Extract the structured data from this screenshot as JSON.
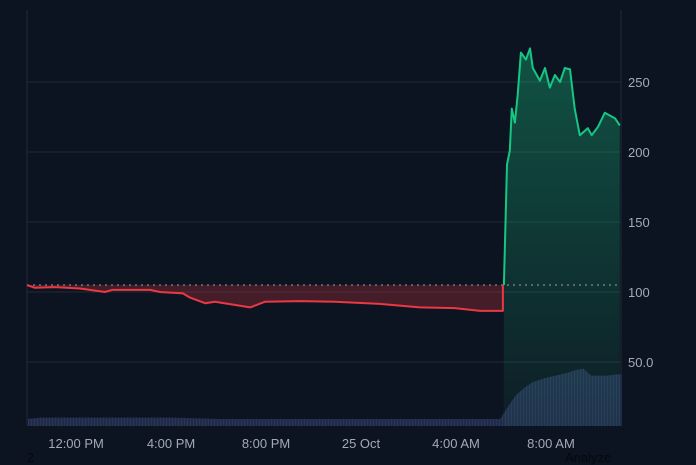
{
  "chart_data": {
    "type": "area",
    "baseline": 105,
    "ylim": [
      0,
      290
    ],
    "y_ticks": [
      "50.0",
      "100",
      "150",
      "200",
      "250"
    ],
    "y_tick_values": [
      50,
      100,
      150,
      200,
      250
    ],
    "x_ticks": [
      "12:00 PM",
      "4:00 PM",
      "8:00 PM",
      "25 Oct",
      "4:00 AM",
      "8:00 AM"
    ],
    "x_tick_times": [
      "24 12:00",
      "24 16:00",
      "24 20:00",
      "25 00:00",
      "25 04:00",
      "25 08:00"
    ],
    "xlim": [
      "24 09:56",
      "25 10:57"
    ],
    "grid": true,
    "colors": {
      "up": "#16c784",
      "down": "#ea3943",
      "volume": "#2a3558",
      "background": "#0d1421",
      "grid": "#222a38"
    },
    "series": [
      {
        "points": [
          [
            "24 09:56",
            105
          ],
          [
            "24 10:16",
            103
          ],
          [
            "24 11:07",
            103.5
          ],
          [
            "24 12:10",
            102.5
          ],
          [
            "24 13:13",
            100
          ],
          [
            "24 13:31",
            101.5
          ],
          [
            "24 15:07",
            101.5
          ],
          [
            "24 15:32",
            100
          ],
          [
            "24 16:30",
            99
          ],
          [
            "24 16:48",
            96
          ],
          [
            "24 17:26",
            92
          ],
          [
            "24 17:51",
            93
          ],
          [
            "24 19:20",
            89
          ],
          [
            "24 19:57",
            93
          ],
          [
            "24 21:26",
            93.5
          ],
          [
            "24 22:54",
            93
          ],
          [
            "25 00:48",
            91.5
          ],
          [
            "25 02:29",
            89
          ],
          [
            "25 03:57",
            88.5
          ],
          [
            "25 05:01",
            86.5
          ],
          [
            "25 05:56",
            86.5
          ],
          [
            "25 06:01",
            105
          ],
          [
            "25 06:09",
            191
          ],
          [
            "25 06:16",
            201
          ],
          [
            "25 06:21",
            231
          ],
          [
            "25 06:29",
            221
          ],
          [
            "25 06:36",
            241
          ],
          [
            "25 06:44",
            271
          ],
          [
            "25 06:57",
            266
          ],
          [
            "25 07:07",
            274
          ],
          [
            "25 07:14",
            260
          ],
          [
            "25 07:32",
            251
          ],
          [
            "25 07:45",
            260
          ],
          [
            "25 07:57",
            246
          ],
          [
            "25 08:10",
            255
          ],
          [
            "25 08:23",
            250
          ],
          [
            "25 08:35",
            260
          ],
          [
            "25 08:48",
            259
          ],
          [
            "25 09:00",
            231
          ],
          [
            "25 09:13",
            212
          ],
          [
            "25 09:33",
            217
          ],
          [
            "25 09:43",
            212
          ],
          [
            "25 09:59",
            218
          ],
          [
            "25 10:16",
            228
          ],
          [
            "25 10:42",
            224
          ],
          [
            "25 10:54",
            219
          ]
        ]
      }
    ],
    "volume": [
      [
        "24 09:56",
        5
      ],
      [
        "24 10:30",
        6
      ],
      [
        "24 12:00",
        6
      ],
      [
        "24 14:00",
        6
      ],
      [
        "24 16:00",
        6
      ],
      [
        "24 17:00",
        5.5
      ],
      [
        "24 18:00",
        5
      ],
      [
        "24 20:00",
        5
      ],
      [
        "24 22:00",
        5
      ],
      [
        "25 00:00",
        5
      ],
      [
        "25 02:00",
        5
      ],
      [
        "25 04:00",
        5
      ],
      [
        "25 05:50",
        5
      ],
      [
        "25 06:10",
        14
      ],
      [
        "25 06:30",
        22
      ],
      [
        "25 06:50",
        27
      ],
      [
        "25 07:10",
        31
      ],
      [
        "25 07:40",
        34
      ],
      [
        "25 08:10",
        36
      ],
      [
        "25 08:40",
        38
      ],
      [
        "25 09:00",
        40
      ],
      [
        "25 09:20",
        41
      ],
      [
        "25 09:40",
        36
      ],
      [
        "25 10:20",
        36
      ],
      [
        "25 10:50",
        37
      ]
    ]
  },
  "footer": {
    "left": "2",
    "right": "Analyze"
  }
}
